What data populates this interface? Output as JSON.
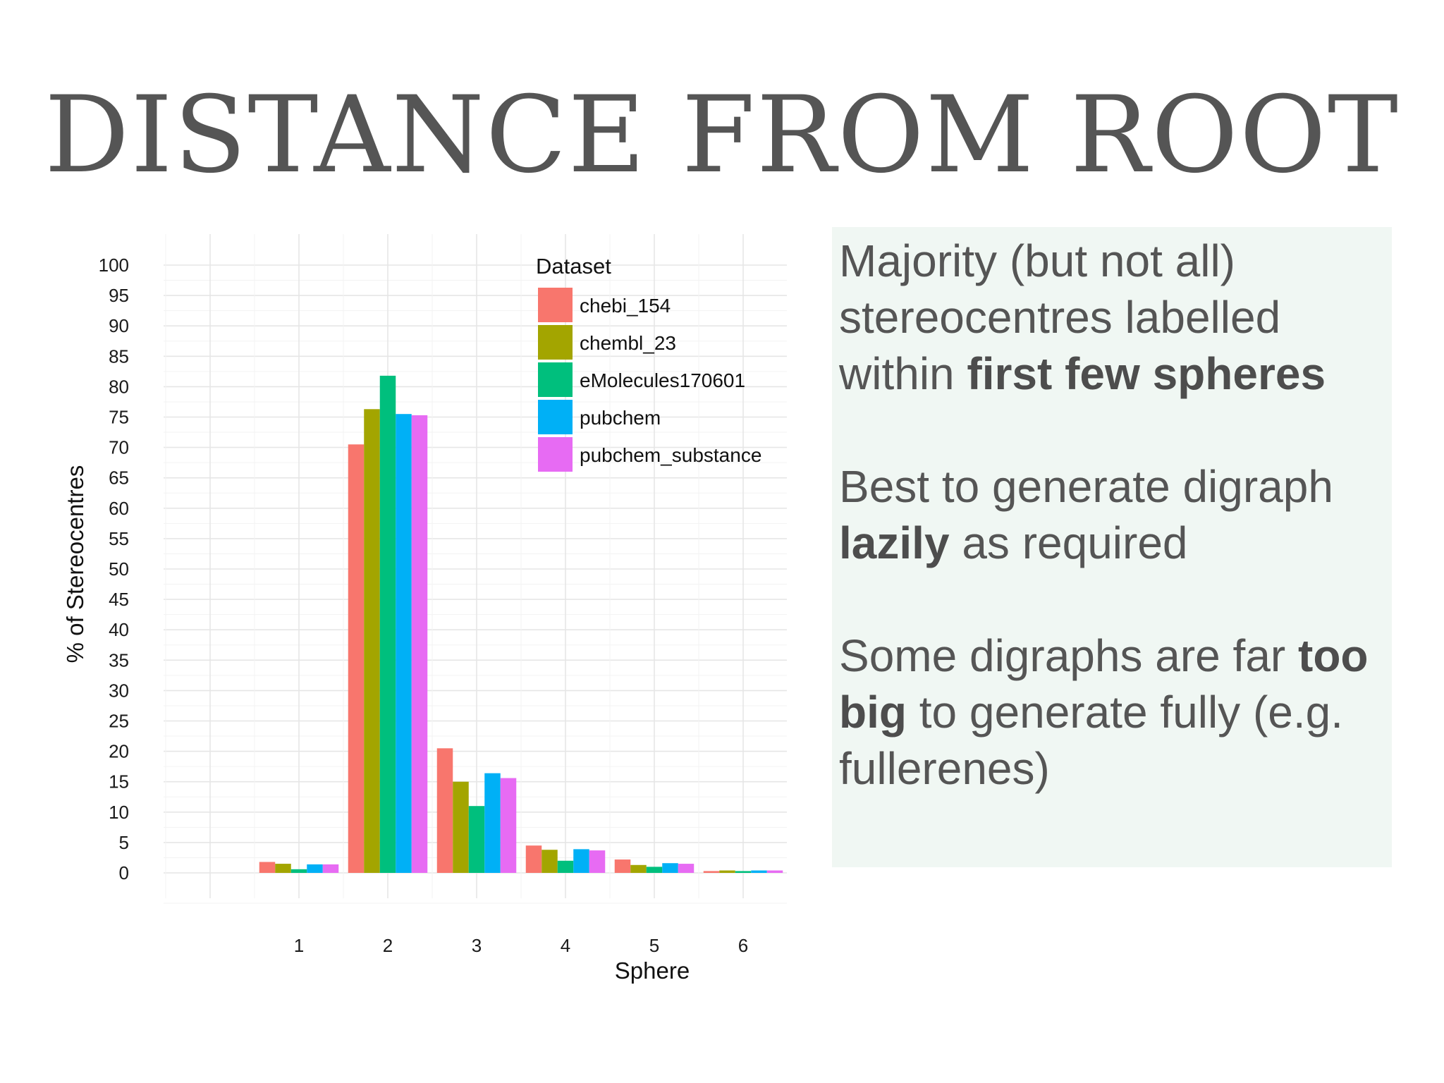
{
  "slide": {
    "title": "DISTANCE FROM ROOT"
  },
  "notes": {
    "point1": {
      "pre": "Majority (but not all) stereocentres labelled within ",
      "bold": "first few spheres",
      "post": ""
    },
    "point2": {
      "pre": "Best to generate digraph ",
      "bold": "lazily",
      "post": " as required"
    },
    "point3": {
      "pre": "Some digraphs are far ",
      "bold": "too big",
      "post": " to generate fully (e.g. fullerenes)"
    }
  },
  "chart_data": {
    "type": "bar",
    "title": "",
    "xlabel": "Sphere",
    "ylabel": "% of Stereocentres",
    "categories": [
      "1",
      "2",
      "3",
      "4",
      "5",
      "6"
    ],
    "ylim": [
      0,
      100
    ],
    "yticks": [
      0,
      5,
      10,
      15,
      20,
      25,
      30,
      35,
      40,
      45,
      50,
      55,
      60,
      65,
      70,
      75,
      80,
      85,
      90,
      95,
      100
    ],
    "grid": true,
    "legend": {
      "title": "Dataset",
      "placement": "top-right"
    },
    "series": [
      {
        "name": "chebi_154",
        "color": "#F8766D",
        "values": [
          1.8,
          70.5,
          20.5,
          4.5,
          2.2,
          0.3
        ]
      },
      {
        "name": "chembl_23",
        "color": "#A3A500",
        "values": [
          1.5,
          76.3,
          15.0,
          3.8,
          1.3,
          0.4
        ]
      },
      {
        "name": "eMolecules170601",
        "color": "#00BF7D",
        "values": [
          0.6,
          81.8,
          11.0,
          2.0,
          1.0,
          0.3
        ]
      },
      {
        "name": "pubchem",
        "color": "#00B0F6",
        "values": [
          1.4,
          75.5,
          16.4,
          3.9,
          1.6,
          0.4
        ]
      },
      {
        "name": "pubchem_substance",
        "color": "#E76BF3",
        "values": [
          1.4,
          75.3,
          15.6,
          3.7,
          1.5,
          0.4
        ]
      }
    ]
  }
}
